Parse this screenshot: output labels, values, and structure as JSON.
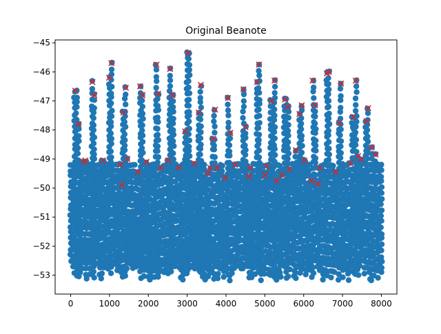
{
  "chart_data": {
    "type": "scatter",
    "title": "Original Beanote",
    "xlabel": "",
    "ylabel": "",
    "xlim": [
      -400,
      8400
    ],
    "ylim": [
      -53.65,
      -44.9
    ],
    "x_ticks": [
      0,
      1000,
      2000,
      3000,
      4000,
      5000,
      6000,
      7000,
      8000
    ],
    "y_ticks": [
      -53,
      -52,
      -51,
      -50,
      -49,
      -48,
      -47,
      -46,
      -45
    ],
    "y_tick_labels": [
      "−53",
      "−52",
      "−51",
      "−50",
      "−49",
      "−48",
      "−47",
      "−46",
      "−45"
    ],
    "grid": false,
    "series": [
      {
        "marker": "circle",
        "color": "#1f77b4",
        "x_range": [
          0,
          8000
        ],
        "y_range": [
          -53.2,
          -45.3
        ],
        "note_points": "dense band of circular markers spanning roughly -53.2 to -50 with peaks up to about -45.3"
      },
      {
        "marker": "x",
        "color": "#d62728",
        "points": [
          [
            120,
            -46.65
          ],
          [
            200,
            -47.8
          ],
          [
            330,
            -49.1
          ],
          [
            380,
            -49.05
          ],
          [
            560,
            -46.35
          ],
          [
            610,
            -46.8
          ],
          [
            830,
            -49.05
          ],
          [
            990,
            -46.2
          ],
          [
            1050,
            -45.7
          ],
          [
            1280,
            -49.2
          ],
          [
            1320,
            -49.9
          ],
          [
            1360,
            -47.4
          ],
          [
            1420,
            -46.55
          ],
          [
            1460,
            -49.0
          ],
          [
            1730,
            -49.45
          ],
          [
            1790,
            -46.5
          ],
          [
            1850,
            -46.8
          ],
          [
            1950,
            -49.1
          ],
          [
            2210,
            -45.75
          ],
          [
            2250,
            -46.75
          ],
          [
            2320,
            -49.3
          ],
          [
            2510,
            -49.05
          ],
          [
            2560,
            -45.9
          ],
          [
            2620,
            -46.8
          ],
          [
            2780,
            -49.3
          ],
          [
            2950,
            -48.05
          ],
          [
            3020,
            -45.35
          ],
          [
            3180,
            -49.15
          ],
          [
            3300,
            -47.4
          ],
          [
            3350,
            -46.45
          ],
          [
            3530,
            -49.5
          ],
          [
            3590,
            -49.3
          ],
          [
            3670,
            -48.3
          ],
          [
            3720,
            -47.3
          ],
          [
            3770,
            -49.3
          ],
          [
            3980,
            -49.65
          ],
          [
            4050,
            -46.9
          ],
          [
            4110,
            -48.1
          ],
          [
            4230,
            -49.2
          ],
          [
            4450,
            -46.6
          ],
          [
            4500,
            -47.9
          ],
          [
            4590,
            -49.6
          ],
          [
            4620,
            -49.3
          ],
          [
            4800,
            -46.35
          ],
          [
            4850,
            -45.75
          ],
          [
            5000,
            -49.55
          ],
          [
            5050,
            -49.25
          ],
          [
            5170,
            -47.0
          ],
          [
            5250,
            -46.3
          ],
          [
            5300,
            -49.75
          ],
          [
            5440,
            -49.55
          ],
          [
            5520,
            -46.95
          ],
          [
            5590,
            -47.2
          ],
          [
            5640,
            -49.35
          ],
          [
            5800,
            -48.7
          ],
          [
            5890,
            -47.45
          ],
          [
            5950,
            -47.15
          ],
          [
            6020,
            -49.05
          ],
          [
            6200,
            -49.75
          ],
          [
            6230,
            -46.3
          ],
          [
            6290,
            -47.15
          ],
          [
            6370,
            -49.85
          ],
          [
            6410,
            -49.3
          ],
          [
            6600,
            -46.05
          ],
          [
            6650,
            -46.0
          ],
          [
            6820,
            -49.45
          ],
          [
            6920,
            -47.75
          ],
          [
            6960,
            -46.4
          ],
          [
            7200,
            -49.15
          ],
          [
            7280,
            -47.55
          ],
          [
            7340,
            -46.3
          ],
          [
            7400,
            -48.9
          ],
          [
            7480,
            -49.0
          ],
          [
            7620,
            -47.7
          ],
          [
            7660,
            -47.25
          ],
          [
            7750,
            -48.6
          ],
          [
            7850,
            -48.85
          ]
        ]
      }
    ]
  }
}
